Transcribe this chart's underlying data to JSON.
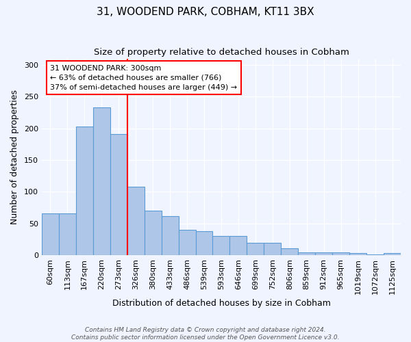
{
  "title": "31, WOODEND PARK, COBHAM, KT11 3BX",
  "subtitle": "Size of property relative to detached houses in Cobham",
  "xlabel": "Distribution of detached houses by size in Cobham",
  "ylabel": "Number of detached properties",
  "categories": [
    "60sqm",
    "113sqm",
    "167sqm",
    "220sqm",
    "273sqm",
    "326sqm",
    "380sqm",
    "433sqm",
    "486sqm",
    "539sqm",
    "593sqm",
    "646sqm",
    "699sqm",
    "752sqm",
    "806sqm",
    "859sqm",
    "912sqm",
    "965sqm",
    "1019sqm",
    "1072sqm",
    "1125sqm"
  ],
  "values": [
    66,
    66,
    203,
    233,
    191,
    108,
    70,
    62,
    40,
    38,
    30,
    30,
    20,
    20,
    11,
    5,
    5,
    5,
    3,
    1,
    3
  ],
  "bar_color": "#aec6e8",
  "bar_edge_color": "#5b9bd5",
  "annotation_line1": "31 WOODEND PARK: 300sqm",
  "annotation_line2": "← 63% of detached houses are smaller (766)",
  "annotation_line3": "37% of semi-detached houses are larger (449) →",
  "annotation_box_color": "white",
  "annotation_box_edge_color": "red",
  "vline_x_index": 5,
  "vline_color": "red",
  "footer_line1": "Contains HM Land Registry data © Crown copyright and database right 2024.",
  "footer_line2": "Contains public sector information licensed under the Open Government Licence v3.0.",
  "ylim": [
    0,
    310
  ],
  "title_fontsize": 11,
  "subtitle_fontsize": 9.5,
  "axis_label_fontsize": 9,
  "tick_fontsize": 8,
  "annotation_fontsize": 8,
  "footer_fontsize": 6.5,
  "background_color": "#f0f4ff"
}
